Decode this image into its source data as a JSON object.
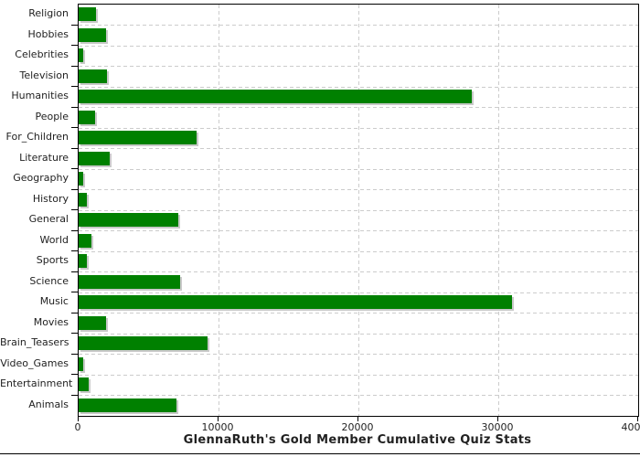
{
  "chart_data": {
    "type": "bar",
    "orientation": "horizontal",
    "title": "GlennaRuth's Gold Member Cumulative Quiz Stats",
    "categories": [
      "Religion",
      "Hobbies",
      "Celebrities",
      "Television",
      "Humanities",
      "People",
      "For_Children",
      "Literature",
      "Geography",
      "History",
      "General",
      "World",
      "Sports",
      "Science",
      "Music",
      "Movies",
      "Brain_Teasers",
      "Video_Games",
      "Entertainment",
      "Animals"
    ],
    "values": [
      1250,
      1950,
      300,
      2050,
      28100,
      1200,
      8400,
      2250,
      330,
      600,
      7100,
      920,
      600,
      7250,
      31000,
      1950,
      9200,
      330,
      730,
      7000
    ],
    "xlabel": "",
    "ylabel": "",
    "xlim": [
      0,
      40000
    ],
    "x_ticks": [
      0,
      10000,
      20000,
      30000,
      40000
    ],
    "x_tick_labels": [
      "0",
      "10000",
      "20000",
      "30000",
      "40000"
    ],
    "grid": true,
    "grid_style": "dashed",
    "legend": "none",
    "colors": {
      "bar_fill": "#008000",
      "bar_shadow": "#c9c9c9",
      "grid_line": "#cccccc",
      "axis_line": "#000000",
      "text": "#222222"
    }
  }
}
